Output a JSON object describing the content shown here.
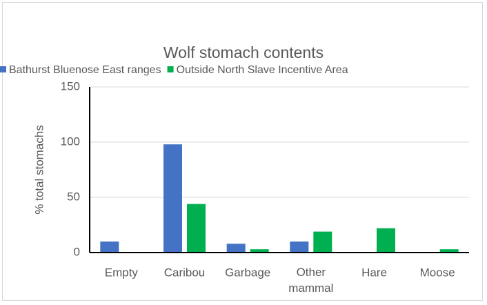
{
  "chart_data": {
    "type": "bar",
    "title": "Wolf stomach contents",
    "y_label": "% total stomachs",
    "categories": [
      "Empty",
      "Caribou",
      "Garbage",
      "Other mammal",
      "Hare",
      "Moose"
    ],
    "series": [
      {
        "name": "Bathurst Bluenose East ranges",
        "color": "#4472c4",
        "values": [
          10,
          98,
          8,
          10,
          0,
          0
        ]
      },
      {
        "name": "Outside North Slave Incentive Area",
        "color": "#00b050",
        "values": [
          0,
          44,
          3,
          19,
          22,
          3
        ]
      }
    ],
    "ylim": [
      0,
      150
    ],
    "yticks": [
      0,
      50,
      100,
      150
    ],
    "grid": true,
    "legend": "top"
  }
}
